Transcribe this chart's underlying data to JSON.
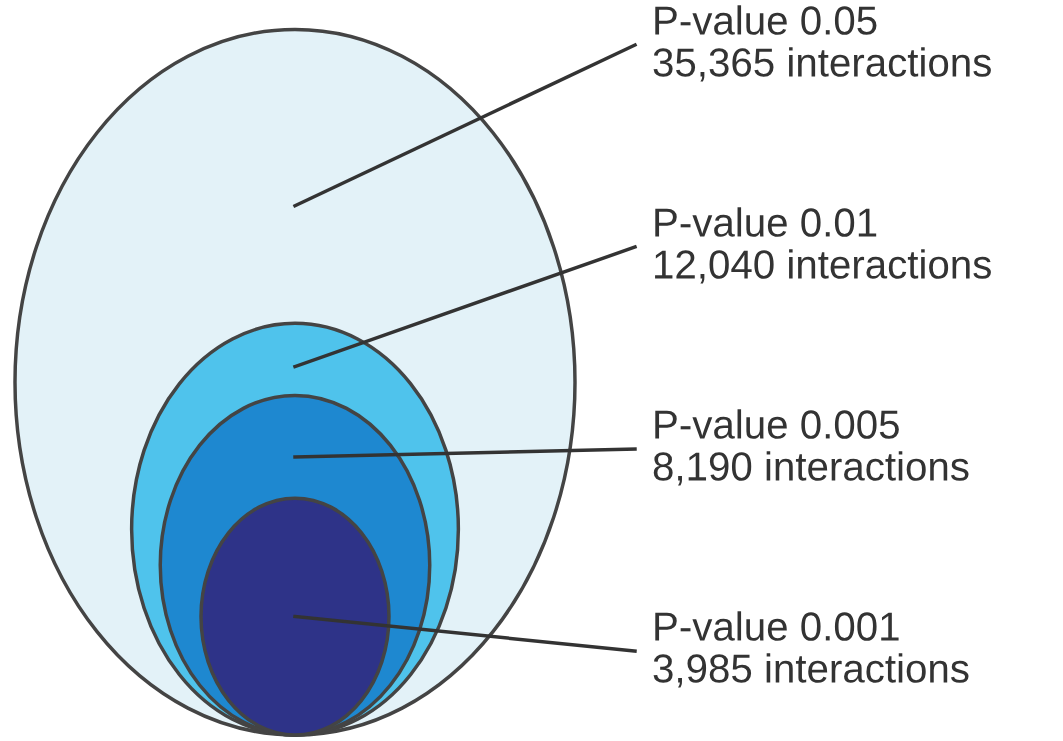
{
  "chart_data": {
    "type": "other",
    "categories": [
      "P-value 0.05",
      "P-value 0.01",
      "P-value 0.005",
      "P-value 0.001"
    ],
    "values": [
      35365,
      12040,
      8190,
      3985
    ],
    "value_labels": [
      "35,365 interactions",
      "12,040 interactions",
      "8,190 interactions",
      "3,985 interactions"
    ],
    "colors": [
      "#e3f2f8",
      "#4fc3ec",
      "#1e88d0",
      "#2e3388"
    ]
  }
}
